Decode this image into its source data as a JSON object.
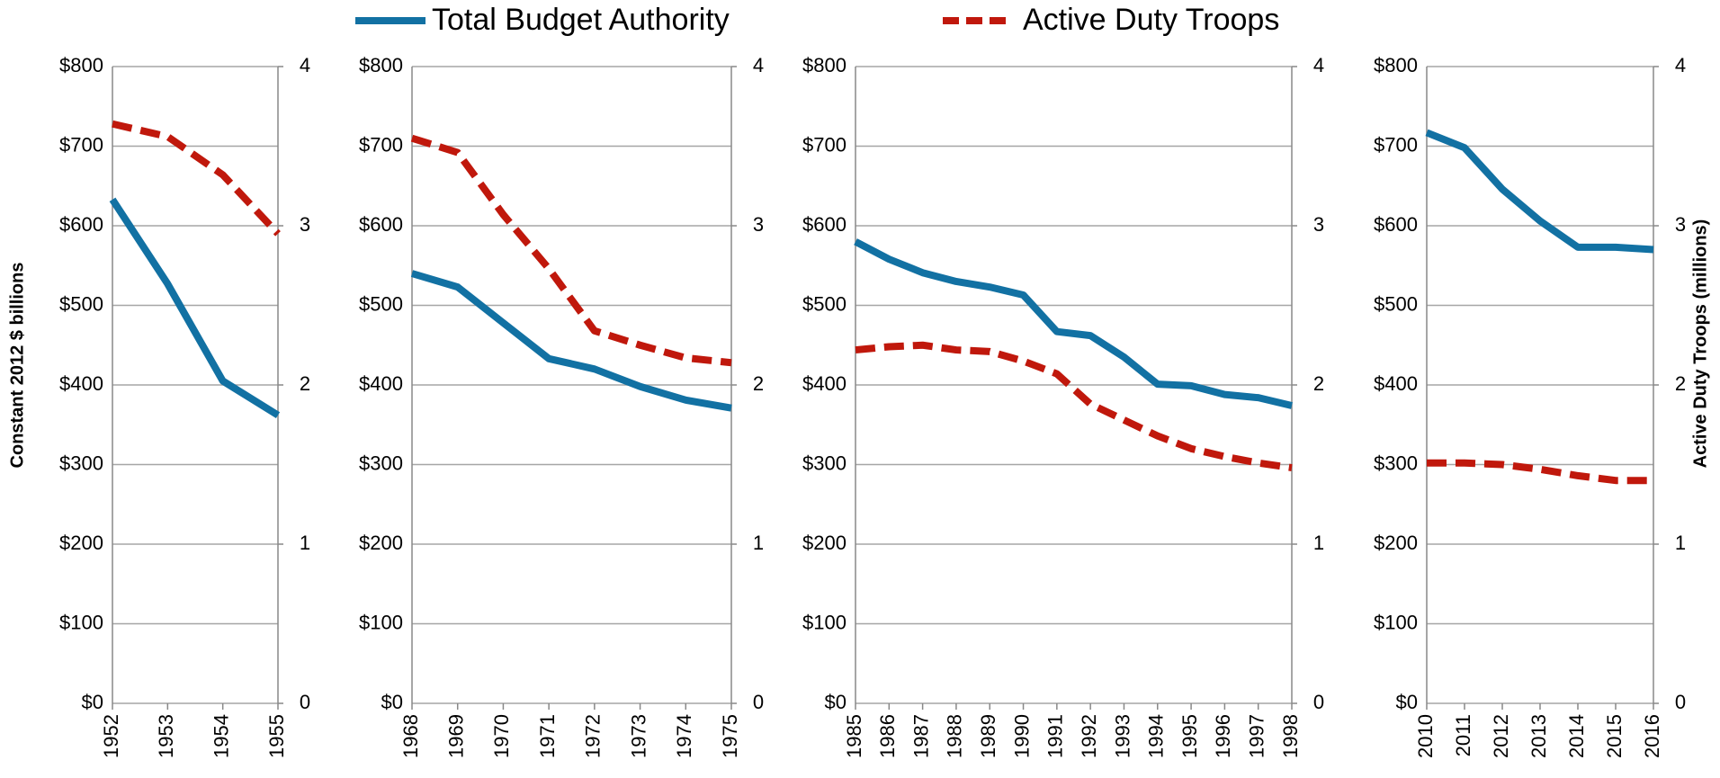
{
  "chart_data": [
    {
      "type": "line",
      "categories": [
        "1952",
        "1953",
        "1954",
        "1955"
      ],
      "y_label": "Constant 2012 $ billions",
      "ylim": [
        0,
        800
      ],
      "yticks": [
        {
          "value": 0,
          "label": "$0"
        },
        {
          "value": 100,
          "label": "$100"
        },
        {
          "value": 200,
          "label": "$200"
        },
        {
          "value": 300,
          "label": "$300"
        },
        {
          "value": 400,
          "label": "$400"
        },
        {
          "value": 500,
          "label": "$500"
        },
        {
          "value": 600,
          "label": "$600"
        },
        {
          "value": 700,
          "label": "$700"
        },
        {
          "value": 800,
          "label": "$800"
        }
      ],
      "y2lim": [
        0,
        4
      ],
      "y2ticks": [
        0,
        1,
        2,
        3,
        4
      ],
      "grid": true,
      "series": [
        {
          "name": "Total Budget Authority",
          "color": "#1271a3",
          "values": [
            633,
            527,
            405,
            362
          ]
        },
        {
          "name": "Active Duty Troops",
          "color": "#c0180c",
          "dashed": true,
          "axis": "y2",
          "values": [
            3.64,
            3.56,
            3.32,
            2.95
          ]
        }
      ]
    },
    {
      "type": "line",
      "categories": [
        "1968",
        "1969",
        "1970",
        "1971",
        "1972",
        "1973",
        "1974",
        "1975"
      ],
      "ylim": [
        0,
        800
      ],
      "yticks": [
        {
          "value": 0,
          "label": "$0"
        },
        {
          "value": 100,
          "label": "$100"
        },
        {
          "value": 200,
          "label": "$200"
        },
        {
          "value": 300,
          "label": "$300"
        },
        {
          "value": 400,
          "label": "$400"
        },
        {
          "value": 500,
          "label": "$500"
        },
        {
          "value": 600,
          "label": "$600"
        },
        {
          "value": 700,
          "label": "$700"
        },
        {
          "value": 800,
          "label": "$800"
        }
      ],
      "y2lim": [
        0,
        4
      ],
      "y2ticks": [
        0,
        1,
        2,
        3,
        4
      ],
      "grid": true,
      "series": [
        {
          "color": "#1271a3",
          "values": [
            540,
            523,
            478,
            433,
            420,
            398,
            381,
            371
          ]
        },
        {
          "color": "#c0180c",
          "dashed": true,
          "axis": "y2",
          "values": [
            3.55,
            3.46,
            3.07,
            2.73,
            2.34,
            2.25,
            2.17,
            2.14
          ]
        }
      ]
    },
    {
      "type": "line",
      "categories": [
        "1985",
        "1986",
        "1987",
        "1988",
        "1989",
        "1990",
        "1991",
        "1992",
        "1993",
        "1994",
        "1995",
        "1996",
        "1997",
        "1998"
      ],
      "ylim": [
        0,
        800
      ],
      "yticks": [
        {
          "value": 0,
          "label": "$0"
        },
        {
          "value": 100,
          "label": "$100"
        },
        {
          "value": 200,
          "label": "$200"
        },
        {
          "value": 300,
          "label": "$300"
        },
        {
          "value": 400,
          "label": "$400"
        },
        {
          "value": 500,
          "label": "$500"
        },
        {
          "value": 600,
          "label": "$600"
        },
        {
          "value": 700,
          "label": "$700"
        },
        {
          "value": 800,
          "label": "$800"
        }
      ],
      "y2lim": [
        0,
        4
      ],
      "y2ticks": [
        0,
        1,
        2,
        3,
        4
      ],
      "grid": true,
      "series": [
        {
          "color": "#1271a3",
          "values": [
            580,
            558,
            541,
            530,
            523,
            513,
            467,
            462,
            435,
            401,
            399,
            388,
            384,
            374
          ]
        },
        {
          "color": "#c0180c",
          "dashed": true,
          "axis": "y2",
          "values": [
            2.22,
            2.24,
            2.25,
            2.22,
            2.21,
            2.15,
            2.07,
            1.88,
            1.78,
            1.68,
            1.6,
            1.55,
            1.51,
            1.48
          ]
        }
      ]
    },
    {
      "type": "line",
      "categories": [
        "2010",
        "2011",
        "2012",
        "2013",
        "2014",
        "2015",
        "2016"
      ],
      "y2_label": "Active Duty Troops (millions)",
      "ylim": [
        0,
        800
      ],
      "yticks": [
        {
          "value": 0,
          "label": "$0"
        },
        {
          "value": 100,
          "label": "$100"
        },
        {
          "value": 200,
          "label": "$200"
        },
        {
          "value": 300,
          "label": "$300"
        },
        {
          "value": 400,
          "label": "$400"
        },
        {
          "value": 500,
          "label": "$500"
        },
        {
          "value": 600,
          "label": "$600"
        },
        {
          "value": 700,
          "label": "$700"
        },
        {
          "value": 800,
          "label": "$800"
        }
      ],
      "y2lim": [
        0,
        4
      ],
      "y2ticks": [
        0,
        1,
        2,
        3,
        4
      ],
      "grid": true,
      "series": [
        {
          "color": "#1271a3",
          "values": [
            717,
            698,
            646,
            606,
            573,
            573,
            570
          ]
        },
        {
          "color": "#c0180c",
          "dashed": true,
          "axis": "y2",
          "values": [
            1.51,
            1.51,
            1.5,
            1.47,
            1.43,
            1.4,
            1.4
          ]
        }
      ]
    }
  ]
}
